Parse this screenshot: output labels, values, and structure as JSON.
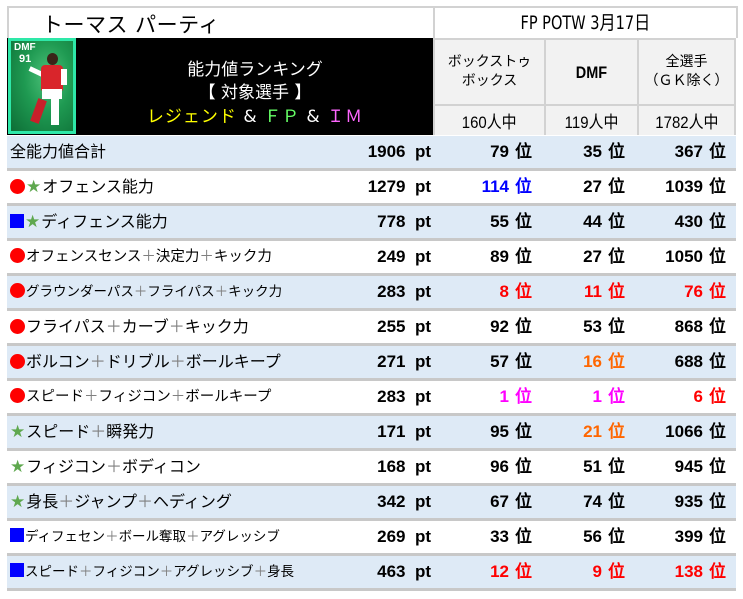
{
  "header": {
    "player_name": "トーマス パーティ",
    "event": "FP POTW 3月17日",
    "card": {
      "position": "DMF",
      "rating": "91",
      "border_color": "#2ee8a8"
    },
    "banner": {
      "line1": "能力値ランキング",
      "line2": "【 対象選手 】",
      "line3": {
        "legend": "レジェンド",
        "amp1": " & ",
        "fp": "ＦＰ",
        "amp2": " & ",
        "im": "ＩＭ"
      }
    },
    "columns": [
      {
        "label_line1": "ボックストゥ",
        "label_line2": "ボックス",
        "count": "160人中"
      },
      {
        "label_line1": "DMF",
        "label_line2": "",
        "count": "119人中"
      },
      {
        "label_line1": "全選手",
        "label_line2": "（ＧＫ除く）",
        "count": "1782人中"
      }
    ]
  },
  "units": {
    "points": "pt",
    "rank": "位"
  },
  "colors": {
    "row_alt": "#deeaf6",
    "row_plain": "#ffffff",
    "separator": "#c8c8c8",
    "offense_marker": "#ff0000",
    "defense_marker": "#0000ff",
    "star": "#5fa84f",
    "rank_red": "#ff0000",
    "rank_orange": "#ff6600",
    "rank_magenta": "#ff00ff",
    "rank_blue": "#0000ff",
    "rank_black": "#000000"
  },
  "rows": [
    {
      "markers": [],
      "label": "全能力値合計",
      "points": "1906",
      "ranks": [
        {
          "v": "79",
          "c": "#000000"
        },
        {
          "v": "35",
          "c": "#000000"
        },
        {
          "v": "367",
          "c": "#000000"
        }
      ]
    },
    {
      "markers": [
        "circle",
        "star"
      ],
      "label": "オフェンス能力",
      "points": "1279",
      "ranks": [
        {
          "v": "114",
          "c": "#0000ff"
        },
        {
          "v": "27",
          "c": "#000000"
        },
        {
          "v": "1039",
          "c": "#000000"
        }
      ]
    },
    {
      "markers": [
        "square",
        "star"
      ],
      "label": "ディフェンス能力",
      "points": "778",
      "ranks": [
        {
          "v": "55",
          "c": "#000000"
        },
        {
          "v": "44",
          "c": "#000000"
        },
        {
          "v": "430",
          "c": "#000000"
        }
      ]
    },
    {
      "markers": [
        "circle"
      ],
      "label": "オフェンスセンス＋決定力＋キック力",
      "points": "249",
      "ranks": [
        {
          "v": "89",
          "c": "#000000"
        },
        {
          "v": "27",
          "c": "#000000"
        },
        {
          "v": "1050",
          "c": "#000000"
        }
      ]
    },
    {
      "markers": [
        "circle"
      ],
      "label": "グラウンダーパス＋フライパス＋キック力",
      "points": "283",
      "ranks": [
        {
          "v": "8",
          "c": "#ff0000"
        },
        {
          "v": "11",
          "c": "#ff0000"
        },
        {
          "v": "76",
          "c": "#ff0000"
        }
      ]
    },
    {
      "markers": [
        "circle"
      ],
      "label": "フライパス＋カーブ＋キック力",
      "points": "255",
      "ranks": [
        {
          "v": "92",
          "c": "#000000"
        },
        {
          "v": "53",
          "c": "#000000"
        },
        {
          "v": "868",
          "c": "#000000"
        }
      ]
    },
    {
      "markers": [
        "circle"
      ],
      "label": "ボルコン＋ドリブル＋ボールキープ",
      "points": "271",
      "ranks": [
        {
          "v": "57",
          "c": "#000000"
        },
        {
          "v": "16",
          "c": "#ff6600"
        },
        {
          "v": "688",
          "c": "#000000"
        }
      ]
    },
    {
      "markers": [
        "circle"
      ],
      "label": "スピード＋フィジコン＋ボールキープ",
      "points": "283",
      "ranks": [
        {
          "v": "1",
          "c": "#ff00ff"
        },
        {
          "v": "1",
          "c": "#ff00ff"
        },
        {
          "v": "6",
          "c": "#ff0000"
        }
      ]
    },
    {
      "markers": [
        "star"
      ],
      "label": "スピード＋瞬発力",
      "points": "171",
      "ranks": [
        {
          "v": "95",
          "c": "#000000"
        },
        {
          "v": "21",
          "c": "#ff6600"
        },
        {
          "v": "1066",
          "c": "#000000"
        }
      ]
    },
    {
      "markers": [
        "star"
      ],
      "label": "フィジコン＋ボディコン",
      "points": "168",
      "ranks": [
        {
          "v": "96",
          "c": "#000000"
        },
        {
          "v": "51",
          "c": "#000000"
        },
        {
          "v": "945",
          "c": "#000000"
        }
      ]
    },
    {
      "markers": [
        "star"
      ],
      "label": "身長＋ジャンプ＋ヘディング",
      "points": "342",
      "ranks": [
        {
          "v": "67",
          "c": "#000000"
        },
        {
          "v": "74",
          "c": "#000000"
        },
        {
          "v": "935",
          "c": "#000000"
        }
      ]
    },
    {
      "markers": [
        "square"
      ],
      "label": "ディフェセン＋ボール奪取＋アグレッシブ",
      "points": "269",
      "ranks": [
        {
          "v": "33",
          "c": "#000000"
        },
        {
          "v": "56",
          "c": "#000000"
        },
        {
          "v": "399",
          "c": "#000000"
        }
      ]
    },
    {
      "markers": [
        "square"
      ],
      "label": "スピード＋フィジコン＋アグレッシブ＋身長",
      "points": "463",
      "ranks": [
        {
          "v": "12",
          "c": "#ff0000"
        },
        {
          "v": "9",
          "c": "#ff0000"
        },
        {
          "v": "138",
          "c": "#ff0000"
        }
      ]
    }
  ]
}
